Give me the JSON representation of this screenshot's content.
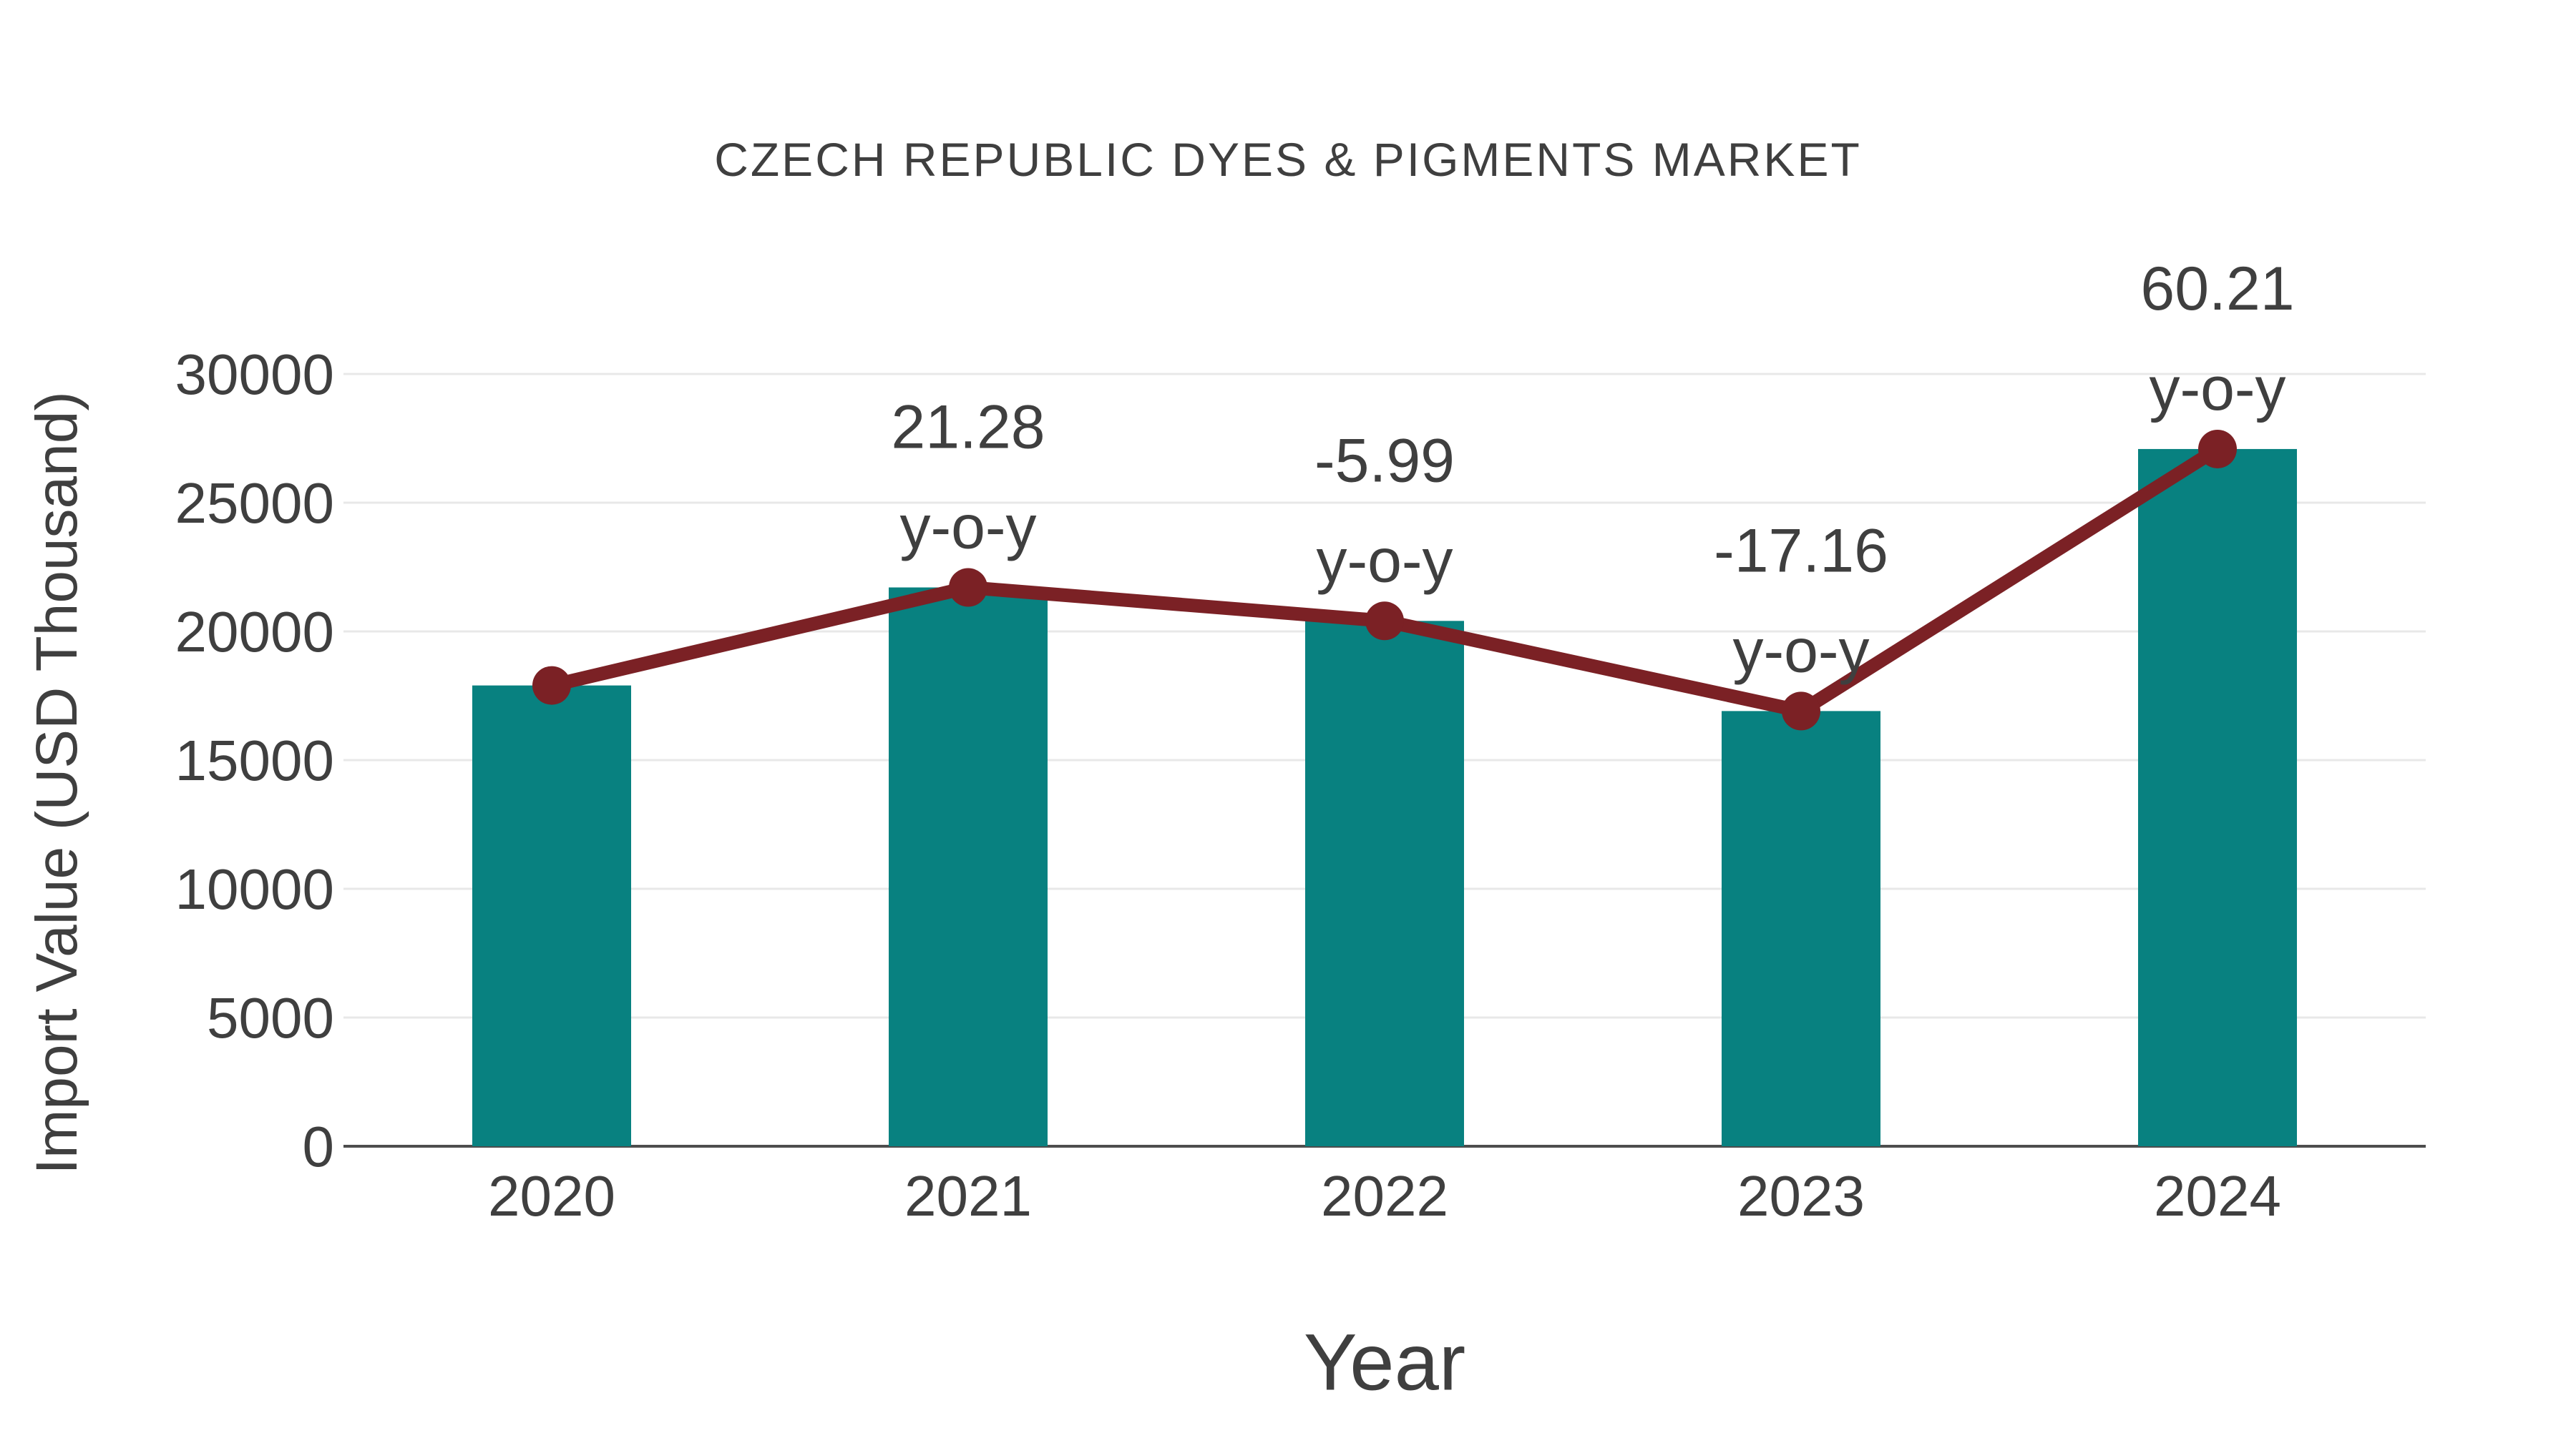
{
  "chart_data": {
    "type": "bar",
    "title": "CZECH REPUBLIC DYES & PIGMENTS MARKET",
    "xlabel": "Year",
    "ylabel": "Import Value (USD Thousand)",
    "categories": [
      "2020",
      "2021",
      "2022",
      "2023",
      "2024"
    ],
    "series": [
      {
        "name": "Import Value",
        "type": "bar",
        "color": "#088180",
        "values": [
          17900,
          21708,
          20408,
          16906,
          27085
        ]
      },
      {
        "name": "y-o-y change (%)",
        "type": "line",
        "color": "#7b2125",
        "values": [
          17900,
          21708,
          20408,
          16906,
          27085
        ],
        "labels": [
          null,
          "21.28",
          "-5.99",
          "-17.16",
          "60.21"
        ],
        "label_suffix": "y-o-y"
      }
    ],
    "yticks": [
      0,
      5000,
      10000,
      15000,
      20000,
      25000,
      30000
    ],
    "ylim": [
      0,
      30000
    ],
    "grid": "horizontal",
    "legend": "none",
    "colors": {
      "background": "#ffffff",
      "text": "#3f3f3f",
      "grid": "#e8e8e8",
      "axis": "#4d4d4d",
      "bar": "#088180",
      "line": "#7b2125"
    }
  }
}
